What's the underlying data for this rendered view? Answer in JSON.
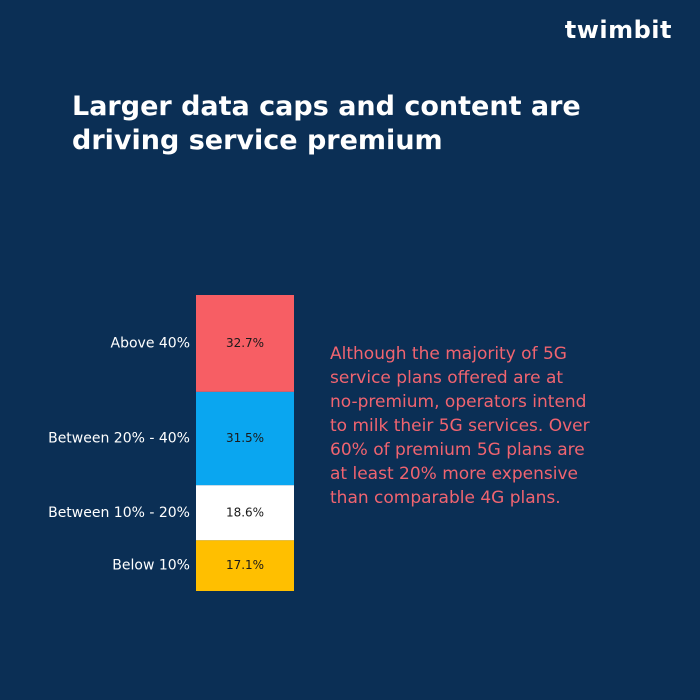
{
  "brand": {
    "logo_main": "twimbit",
    "logo_accent_color": "#f0525f"
  },
  "header": {
    "title": "Larger data caps and content are driving service premium"
  },
  "annotation": {
    "text": "Although the majority of 5G service plans offered are at no-premium, operators intend to milk their 5G services. Over 60% of premium 5G plans are at least 20% more expensive than comparable 4G plans.",
    "color": "#f06470"
  },
  "colors": {
    "background": "#0b2f55"
  },
  "chart_data": {
    "type": "bar",
    "stacked": true,
    "categories": [
      "Above 40%",
      "Between 20% - 40%",
      "Between 10% - 20%",
      "Below 10%"
    ],
    "values": [
      32.7,
      31.5,
      18.6,
      17.1
    ],
    "value_labels": [
      "32.7%",
      "31.5%",
      "18.6%",
      "17.1%"
    ],
    "colors": [
      "#f75e64",
      "#0aa6f0",
      "#ffffff",
      "#ffbf00"
    ],
    "title": "",
    "xlabel": "",
    "ylabel": ""
  }
}
